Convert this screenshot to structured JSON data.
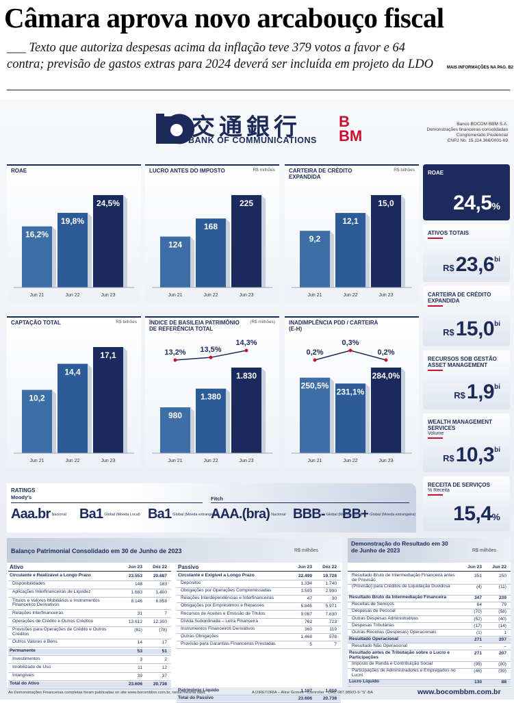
{
  "headline": "Câmara aprova novo arcabouço fiscal",
  "subtitle": "___ Texto que autoriza despesas acima da inflação teve 379 votos a favor e 64 contra; previsão de gastos extras para 2024 deverá ser incluída em projeto da LDO",
  "more_info": "MAIS INFORMAÇÕES NA PAG. B2",
  "ad": {
    "logo_chinese": "交通銀行",
    "logo_english": "BANK OF COMMUNICATIONS",
    "logo_bbm_top": "B",
    "logo_bbm_bottom": "BM",
    "bank_info": [
      "Banco BOCOM BBM S.A.",
      "Demonstrações financeiras consolidadas",
      "Conglomerado Prudencial",
      "CNPJ No: 15.114.366/0001-69"
    ]
  },
  "chart_data": [
    {
      "type": "bar",
      "title": "ROAE",
      "categories": [
        "Jun 21",
        "Jun 22",
        "Jun 23"
      ],
      "values": [
        16.2,
        19.8,
        24.5
      ],
      "value_labels": [
        "16,2%",
        "19,8%",
        "24,5%"
      ],
      "colors": [
        "#3d6fa6",
        "#2d5b98",
        "#1b2a5c"
      ]
    },
    {
      "type": "bar",
      "title": "LUCRO ANTES DO IMPOSTO",
      "unit": "R$ milhões",
      "categories": [
        "Jun 21",
        "Jun 22",
        "Jun 23"
      ],
      "values": [
        124,
        168,
        225
      ],
      "colors": [
        "#3d6fa6",
        "#2d5b98",
        "#1b2a5c"
      ]
    },
    {
      "type": "bar",
      "title": "CARTEIRA DE CRÉDITO EXPANDIDA",
      "unit": "R$ bilhões",
      "categories": [
        "Jun 21",
        "Jun 22",
        "Jun 23"
      ],
      "values": [
        9.2,
        12.1,
        15.0
      ],
      "value_labels": [
        "9,2",
        "12,1",
        "15,0"
      ],
      "colors": [
        "#3d6fa6",
        "#2d5b98",
        "#1b2a5c"
      ]
    },
    {
      "type": "bar",
      "title": "CAPTAÇÃO TOTAL",
      "unit": "R$ bilhões",
      "categories": [
        "Jun 21",
        "Jun 22",
        "Jun 23"
      ],
      "values": [
        10.2,
        14.4,
        17.1
      ],
      "value_labels": [
        "10,2",
        "14,4",
        "17,1"
      ],
      "colors": [
        "#3d6fa6",
        "#2d5b98",
        "#1b2a5c"
      ]
    },
    {
      "type": "bar",
      "title": "ÍNDICE DE BASILEIA PATRIMÔNIO DE REFERÊNCIA TOTAL",
      "unit": "(R$ milhões)",
      "categories": [
        "Jun 21",
        "Jun 22",
        "Jun 23"
      ],
      "values": [
        980,
        1380,
        1830
      ],
      "value_labels": [
        "980",
        "1.380",
        "1.830"
      ],
      "colors": [
        "#3d6fa6",
        "#2d5b98",
        "#1b2a5c"
      ],
      "line_values": [
        13.2,
        13.5,
        14.3
      ],
      "line_value_labels": [
        "13,2%",
        "13,5%",
        "14,3%"
      ],
      "line_color": "#1b2a5c",
      "point_color": "#c8102e"
    },
    {
      "type": "bar",
      "title": "INADIMPLÊNCIA PDD / CARTEIRA (E-H)",
      "categories": [
        "Jun 21",
        "Jun 22",
        "Jun 23"
      ],
      "values": [
        250.5,
        231.1,
        284.0
      ],
      "value_labels": [
        "250,5%",
        "231,1%",
        "284,0%"
      ],
      "colors": [
        "#3d6fa6",
        "#2d5b98",
        "#1b2a5c"
      ],
      "line_values": [
        0.2,
        0.3,
        0.2
      ],
      "line_value_labels": [
        "0,2%",
        "0,3%",
        "0,2%"
      ],
      "line_color": "#1b2a5c",
      "point_color": "#c8102e"
    }
  ],
  "kpis": [
    {
      "title": "ROAE",
      "value": "24,5",
      "suffix": "%"
    },
    {
      "title": "ATIVOS TOTAIS",
      "prefix": "R$",
      "value": "23,6",
      "suffix": "bi"
    },
    {
      "title": "CARTEIRA DE CRÉDITO EXPANDIDA",
      "prefix": "R$",
      "value": "15,0",
      "suffix": "bi"
    },
    {
      "title": "RECURSOS SOB GESTÃO ASSET MANAGEMENT",
      "prefix": "R$",
      "value": "1,9",
      "suffix": "bi"
    },
    {
      "title": "WEALTH MANAGEMENT SERVICES",
      "subtitle": "Volume",
      "prefix": "R$",
      "value": "10,3",
      "suffix": "bi"
    },
    {
      "title": "RECEITA DE SERVIÇOS",
      "subtitle": "% Receita",
      "value": "15,4",
      "suffix": "%"
    }
  ],
  "ratings": {
    "title": "RATINGS",
    "agencies": [
      {
        "name": "Moody's",
        "items": [
          {
            "rating": "Aaa.br",
            "scope": "Nacional"
          },
          {
            "rating": "Ba1",
            "scope": "Global (Moeda Local)"
          },
          {
            "rating": "Ba1",
            "scope": "Global (Moeda estrangeira)"
          }
        ]
      },
      {
        "name": "Fitch",
        "items": [
          {
            "rating": "AAA.(bra)",
            "scope": "Nacional"
          },
          {
            "rating": "BBB-",
            "scope": "Global (Moeda Local)"
          },
          {
            "rating": "BB+",
            "scope": "Global (Moeda estrangeira)"
          }
        ]
      }
    ]
  },
  "balance": {
    "title": "Balanço Patrimonial Consolidado em 30 de Junho de 2023",
    "unit": "R$ milhões",
    "assets": {
      "title": "Ativo",
      "col1": "Jun 23",
      "col2": "Dez 22",
      "rows": [
        {
          "label": "Circulante e Realizável a Longo Prazo",
          "jun23": "23.553",
          "dez22": "20.687",
          "bold": true
        },
        {
          "label": "Disponibilidades",
          "jun23": "148",
          "dez22": "183"
        },
        {
          "label": "Aplicações Interfinanceiras de Liquidez",
          "jun23": "1.683",
          "dez22": "1.400"
        },
        {
          "label": "Títulos e Valores Mobiliários e Instrumentos Financeiros Derivativos",
          "jun23": "8.146",
          "dez22": "6.858"
        },
        {
          "label": "Relações Interfinanceiras",
          "jun23": "31",
          "dez22": "7"
        },
        {
          "label": "Operações de Crédito e Outros Créditos",
          "jun23": "13.612",
          "dez22": "12.300"
        },
        {
          "label": "Provisões para Operações de Crédito e Outros Créditos",
          "jun23": "(81)",
          "dez22": "(78)"
        },
        {
          "label": "Outros Valores e Bens",
          "jun23": "14",
          "dez22": "17"
        },
        {
          "label": "Permanente",
          "jun23": "53",
          "dez22": "51",
          "bold": true
        },
        {
          "label": "Investimentos",
          "jun23": "3",
          "dez22": "2"
        },
        {
          "label": "Imobilizado de Uso",
          "jun23": "11",
          "dez22": "12"
        },
        {
          "label": "Intangíveis",
          "jun23": "39",
          "dez22": "37"
        },
        {
          "label": "Total do Ativo",
          "jun23": "23.606",
          "dez22": "20.738",
          "bold": true
        }
      ]
    },
    "liabilities": {
      "title": "Passivo",
      "col1": "Jun 23",
      "col2": "Dez 22",
      "rows": [
        {
          "label": "Circulante e Exigível a Longo Prazo",
          "jun23": "22.499",
          "dez22": "19.728",
          "bold": true
        },
        {
          "label": "Depósitos",
          "jun23": "1.334",
          "dez22": "1.740"
        },
        {
          "label": "Obrigações por Operações Compromissadas",
          "jun23": "3.593",
          "dez22": "2.930"
        },
        {
          "label": "Relações Interdependências e Interfinanceiras",
          "jun23": "47",
          "dez22": "30"
        },
        {
          "label": "Obrigações por Empréstimos e Repasses",
          "jun23": "5.845",
          "dez22": "5.971"
        },
        {
          "label": "Recursos de Aceites e Emissão de Títulos",
          "jun23": "9.087",
          "dez22": "7.630"
        },
        {
          "label": "Dívida Subordinada – Letra Financeira",
          "jun23": "762",
          "dez22": "723"
        },
        {
          "label": "Instrumentos Financeiros Derivativos",
          "jun23": "360",
          "dez22": "119"
        },
        {
          "label": "Outras Obrigações",
          "jun23": "1.468",
          "dez22": "578"
        },
        {
          "label": "Provisão para Garantias Financeiras Prestadas",
          "jun23": "5",
          "dez22": "7"
        },
        {
          "label": "Patrimônio Líquido",
          "jun23": "1.107",
          "dez22": "1.010",
          "bold": true
        },
        {
          "label": "Total do Passivo",
          "jun23": "23.606",
          "dez22": "20.738",
          "bold": true
        }
      ]
    }
  },
  "income": {
    "title": "Demonstração do Resultado em 30 de Junho de 2023",
    "unit": "R$ milhões",
    "col1": "Jun 23",
    "col2": "Jun 22",
    "rows": [
      {
        "label": "Resultado Bruto de Intermediação Financeira antes de Provisão",
        "jun23": "351",
        "dez22": "250"
      },
      {
        "label": "(Provisão) para Créditos de Liquidação Duvidosa",
        "jun23": "(4)",
        "dez22": "(11)"
      },
      {
        "label": "Resultado Bruto da Intermediação Financeira",
        "jun23": "347",
        "dez22": "239",
        "bold": true
      },
      {
        "label": "Receitas de Serviços",
        "jun23": "64",
        "dez22": "79"
      },
      {
        "label": "Despesas de Pessoal",
        "jun23": "(70)",
        "dez22": "(58)"
      },
      {
        "label": "Outras Despesas Administrativas",
        "jun23": "(52)",
        "dez22": "(40)"
      },
      {
        "label": "Despesas Tributárias",
        "jun23": "(17)",
        "dez22": "(14)"
      },
      {
        "label": "Outras Receitas (Despesas) Operacionais",
        "jun23": "(1)",
        "dez22": "1"
      },
      {
        "label": "Resultado Operacional",
        "jun23": "271",
        "dez22": "207",
        "bold": true
      },
      {
        "label": "Resultado Não Operacional",
        "jun23": "–",
        "dez22": "–"
      },
      {
        "label": "Resultado antes de Tributação sobre o Lucro e Participações",
        "jun23": "271",
        "dez22": "207",
        "bold": true
      },
      {
        "label": "Imposto de Renda e Contribuição Social",
        "jun23": "(95)",
        "dez22": "(80)"
      },
      {
        "label": "Participações de Administradores e Empregados no Lucro",
        "jun23": "(46)",
        "dez22": "(39)"
      },
      {
        "label": "Lucro Líquido",
        "jun23": "130",
        "dez22": "88",
        "bold": true
      }
    ]
  },
  "footer": {
    "note": "As Demonstrações Financeiras completas foram publicadas no site www.bocombbm.com.br, nesta mesma data.",
    "signature": "A DIRETORIA – Aline Gomes - Controller - CRC 087.989/O-9-\"S\"-BA",
    "website": "www.bocombbm.com.br"
  }
}
